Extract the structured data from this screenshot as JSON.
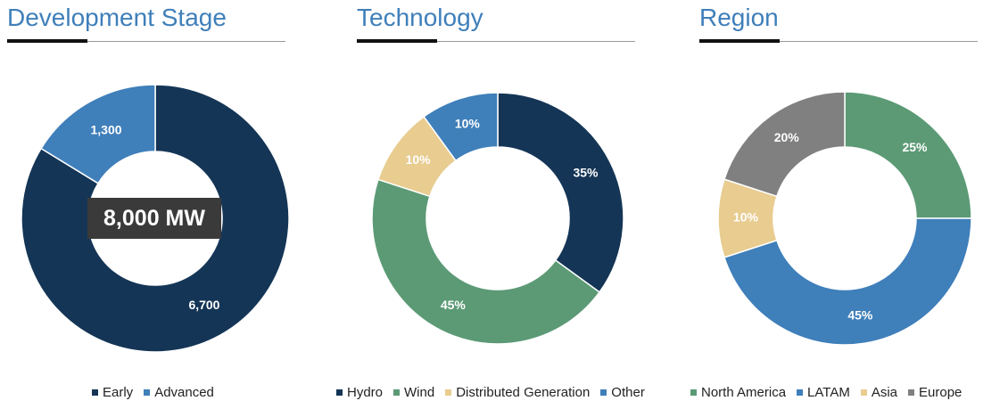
{
  "chart_data": [
    {
      "type": "pie",
      "title": "Development Stage",
      "categories": [
        "Early",
        "Advanced"
      ],
      "values": [
        6700,
        1300
      ],
      "data_labels": [
        "6,700",
        "1,300"
      ],
      "colors": [
        "#143556",
        "#3f7fba"
      ],
      "label_colors": [
        "#ffffff",
        "#ffffff"
      ],
      "center_label": "8,000 MW",
      "legend": "bottom"
    },
    {
      "type": "pie",
      "title": "Technology",
      "categories": [
        "Hydro",
        "Wind",
        "Distributed Generation",
        "Other"
      ],
      "values": [
        35,
        45,
        10,
        10
      ],
      "data_labels": [
        "35%",
        "45%",
        "10%",
        "10%"
      ],
      "colors": [
        "#143556",
        "#5b9a75",
        "#e8cc90",
        "#3f7fba"
      ],
      "label_colors": [
        "#ffffff",
        "#ffffff",
        "#ffffff",
        "#ffffff"
      ],
      "legend": "bottom"
    },
    {
      "type": "pie",
      "title": "Region",
      "categories": [
        "North America",
        "LATAM",
        "Asia",
        "Europe"
      ],
      "values": [
        25,
        45,
        10,
        20
      ],
      "data_labels": [
        "25%",
        "45%",
        "10%",
        "20%"
      ],
      "colors": [
        "#5b9a75",
        "#3f7fba",
        "#e8cc90",
        "#808080"
      ],
      "label_colors": [
        "#ffffff",
        "#ffffff",
        "#ffffff",
        "#ffffff"
      ],
      "legend": "bottom"
    }
  ]
}
